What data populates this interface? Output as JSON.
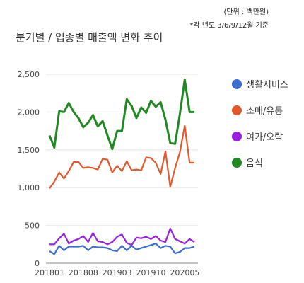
{
  "notes": {
    "unit": "(단위 : 백만원)",
    "basis": "*각 년도 3/6/9/12월 기준"
  },
  "chart_data": {
    "type": "line",
    "title": "분기별 / 업종별 매출액 변화 추이",
    "xlabel": "",
    "ylabel": "",
    "ylim": [
      0,
      2500
    ],
    "yticks": [
      0,
      500,
      1000,
      1500,
      2000,
      2500
    ],
    "ytick_labels": [
      "0",
      "500",
      "1,000",
      "1,500",
      "2,000",
      "2,500"
    ],
    "xtick_labels": [
      "201801",
      "201808",
      "201903",
      "201910",
      "202005"
    ],
    "xtick_index": [
      0,
      7,
      14,
      21,
      28
    ],
    "grid": true,
    "legend_position": "right",
    "x": [
      "201801",
      "201802",
      "201803",
      "201804",
      "201805",
      "201806",
      "201807",
      "201808",
      "201809",
      "201810",
      "201811",
      "201812",
      "201901",
      "201902",
      "201903",
      "201904",
      "201905",
      "201906",
      "201907",
      "201908",
      "201909",
      "201910",
      "201911",
      "201912",
      "202001",
      "202002",
      "202003",
      "202004",
      "202005",
      "202006",
      "202007"
    ],
    "series": [
      {
        "name": "생활서비스",
        "color": "#3a6fd1",
        "values": [
          160,
          120,
          230,
          170,
          220,
          220,
          220,
          230,
          170,
          220,
          210,
          210,
          200,
          170,
          160,
          230,
          170,
          230,
          180,
          200,
          220,
          240,
          260,
          200,
          230,
          220,
          130,
          150,
          200,
          200,
          220
        ]
      },
      {
        "name": "소매/유통",
        "color": "#e2582b",
        "values": [
          990,
          1080,
          1200,
          1120,
          1220,
          1340,
          1340,
          1260,
          1270,
          1260,
          1240,
          1380,
          1370,
          1200,
          1290,
          1220,
          1350,
          1230,
          1240,
          1230,
          1400,
          1390,
          1330,
          1180,
          1480,
          1010,
          1260,
          1470,
          1820,
          1330,
          1330
        ]
      },
      {
        "name": "여가/오락",
        "color": "#9b1fe0",
        "values": [
          250,
          250,
          330,
          390,
          260,
          300,
          320,
          360,
          280,
          400,
          290,
          280,
          250,
          280,
          350,
          380,
          270,
          240,
          340,
          330,
          350,
          320,
          360,
          300,
          280,
          460,
          320,
          290,
          260,
          320,
          280
        ]
      },
      {
        "name": "음식",
        "color": "#1f8a1f",
        "values": [
          1690,
          1530,
          2010,
          2000,
          2120,
          2000,
          1920,
          1800,
          1860,
          1960,
          1810,
          1880,
          1690,
          1510,
          1750,
          1750,
          2170,
          2080,
          1920,
          2060,
          1990,
          2150,
          2070,
          2130,
          1900,
          1590,
          1580,
          1980,
          2430,
          2000,
          2000
        ]
      }
    ]
  }
}
